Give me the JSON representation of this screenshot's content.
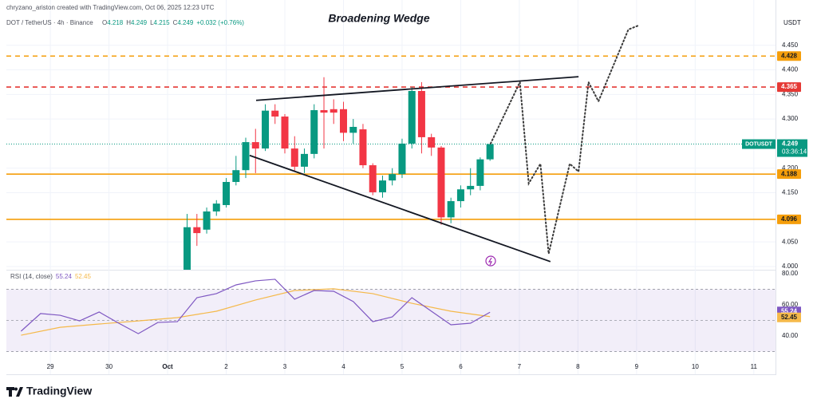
{
  "header": {
    "credit": "chryzano_ariston created with TradingView.com, Oct 06, 2025 12:23 UTC",
    "symbol": "DOT / TetherUS · 4h · Binance",
    "legend": [
      {
        "label": "O",
        "value": "4.218"
      },
      {
        "label": "H",
        "value": "4.249"
      },
      {
        "label": "L",
        "value": "4.215"
      },
      {
        "label": "C",
        "value": "4.249"
      }
    ],
    "change": "+0.032 (+0.76%)",
    "currency": "USDT"
  },
  "footer": {
    "brand": "TradingView"
  },
  "chart_data": [
    {
      "type": "candlestick",
      "title": "Broadening Wedge",
      "x": [
        2.333,
        2.5,
        2.667,
        2.833,
        3,
        3.167,
        3.333,
        3.5,
        3.667,
        3.833,
        4,
        4.167,
        4.333,
        4.5,
        4.667,
        4.833,
        5,
        5.167,
        5.333,
        5.5,
        5.667,
        5.833,
        6,
        6.167,
        6.333,
        6.5,
        6.667,
        6.833,
        7,
        7.167,
        7.333,
        7.5
      ],
      "open": [
        3.99,
        4.08,
        4.075,
        4.112,
        4.125,
        4.172,
        4.196,
        4.253,
        4.24,
        4.317,
        4.305,
        4.24,
        4.203,
        4.229,
        4.318,
        4.32,
        4.32,
        4.272,
        4.279,
        4.206,
        4.151,
        4.175,
        4.188,
        4.25,
        4.357,
        4.263,
        4.242,
        4.1,
        4.133,
        4.157,
        4.164,
        4.218
      ],
      "high": [
        4.107,
        4.107,
        4.12,
        4.135,
        4.18,
        4.225,
        4.262,
        4.28,
        4.33,
        4.33,
        4.31,
        4.265,
        4.24,
        4.33,
        4.385,
        4.34,
        4.335,
        4.3,
        4.29,
        4.21,
        4.185,
        4.2,
        4.26,
        4.365,
        4.375,
        4.27,
        4.245,
        4.14,
        4.165,
        4.2,
        4.222,
        4.249
      ],
      "low": [
        3.98,
        4.042,
        4.067,
        4.103,
        4.12,
        4.165,
        4.18,
        4.19,
        4.235,
        4.29,
        4.23,
        4.195,
        4.19,
        4.22,
        4.24,
        4.29,
        4.255,
        4.25,
        4.2,
        4.145,
        4.14,
        4.165,
        4.18,
        4.24,
        4.23,
        4.225,
        4.085,
        4.088,
        4.12,
        4.145,
        4.155,
        4.215
      ],
      "close": [
        4.08,
        4.068,
        4.112,
        4.128,
        4.172,
        4.196,
        4.253,
        4.24,
        4.317,
        4.305,
        4.24,
        4.203,
        4.229,
        4.318,
        4.313,
        4.313,
        4.272,
        4.284,
        4.206,
        4.151,
        4.175,
        4.188,
        4.25,
        4.357,
        4.263,
        4.242,
        4.1,
        4.133,
        4.157,
        4.164,
        4.218,
        4.249
      ],
      "up_color": "#089981",
      "down_color": "#f23645",
      "xlim": [
        -0.75,
        12.37
      ],
      "ylim": [
        3.9935,
        4.542
      ],
      "xticks": [
        {
          "value": 0,
          "label": "29"
        },
        {
          "value": 1,
          "label": "30"
        },
        {
          "value": 2,
          "label": "Oct"
        },
        {
          "value": 3,
          "label": "2"
        },
        {
          "value": 4,
          "label": "3"
        },
        {
          "value": 5,
          "label": "4"
        },
        {
          "value": 6,
          "label": "5"
        },
        {
          "value": 7,
          "label": "6"
        },
        {
          "value": 8,
          "label": "7"
        },
        {
          "value": 9,
          "label": "8"
        },
        {
          "value": 10,
          "label": "9"
        },
        {
          "value": 11,
          "label": "10"
        },
        {
          "value": 12,
          "label": "11"
        }
      ],
      "yticks": [
        {
          "value": 4.0,
          "label": "4.000"
        },
        {
          "value": 4.05,
          "label": "4.050"
        },
        {
          "value": 4.15,
          "label": "4.150"
        },
        {
          "value": 4.2,
          "label": "4.200"
        },
        {
          "value": 4.3,
          "label": "4.300"
        },
        {
          "value": 4.35,
          "label": "4.350"
        },
        {
          "value": 4.4,
          "label": "4.400"
        },
        {
          "value": 4.45,
          "label": "4.450"
        }
      ],
      "grid": true,
      "levels": [
        {
          "value": 4.428,
          "color": "#f59e0b",
          "dashed": true
        },
        {
          "value": 4.365,
          "color": "#e53935",
          "dashed": true
        },
        {
          "value": 4.188,
          "color": "#f59e0b",
          "dashed": false
        },
        {
          "value": 4.096,
          "color": "#f59e0b",
          "dashed": false
        }
      ],
      "last_price": {
        "label": "DOTUSDT",
        "value": 4.249,
        "countdown": "03:36:14",
        "color": "#089981"
      },
      "wedge_lines": [
        {
          "x": [
            3.51,
            9.01
          ],
          "y": [
            4.338,
            4.386
          ]
        },
        {
          "x": [
            3.4,
            8.53
          ],
          "y": [
            4.226,
            4.01
          ]
        }
      ],
      "projection": {
        "x": [
          7.51,
          8.01,
          8.16,
          8.36,
          8.5,
          8.86,
          9.01,
          9.18,
          9.35,
          9.86,
          10.03
        ],
        "y": [
          4.25,
          4.375,
          4.169,
          4.209,
          4.026,
          4.209,
          4.193,
          4.375,
          4.336,
          4.482,
          4.49
        ]
      }
    },
    {
      "type": "line",
      "title": "RSI (14, close)",
      "series": [
        {
          "name": "55.24",
          "color": "#7e57c2",
          "x": [
            -0.5,
            -0.167,
            0.167,
            0.5,
            0.833,
            1.167,
            1.5,
            1.833,
            2.167,
            2.5,
            2.833,
            3.167,
            3.5,
            3.833,
            4.167,
            4.5,
            4.833,
            5.167,
            5.5,
            5.833,
            6.167,
            6.5,
            6.833,
            7.167,
            7.5
          ],
          "values": [
            43.1,
            54.4,
            53.3,
            49.7,
            55.4,
            48.2,
            41.5,
            48.7,
            49.2,
            64.6,
            67.2,
            72.8,
            75.4,
            76.4,
            63.6,
            69.2,
            68.7,
            62.1,
            49.2,
            52.3,
            64.6,
            55.9,
            47.2,
            48.2,
            55.24
          ]
        },
        {
          "name": "52.45",
          "color": "#f5b94a",
          "x": [
            -0.5,
            0.167,
            0.833,
            1.5,
            2.167,
            2.833,
            3.5,
            4.167,
            4.833,
            5.5,
            6.167,
            6.833,
            7.5
          ],
          "values": [
            40.5,
            45.6,
            47.7,
            49.7,
            51.8,
            55.9,
            63.1,
            69.2,
            70.3,
            67.2,
            61.0,
            55.9,
            52.45
          ]
        }
      ],
      "ylim": [
        26.2,
        81.5
      ],
      "yticks": [
        {
          "value": 80,
          "label": "80.00"
        },
        {
          "value": 60,
          "label": "60.00"
        },
        {
          "value": 40,
          "label": "40.00"
        }
      ],
      "levels": [
        70,
        50,
        30
      ],
      "band_color": "#7e57c2"
    }
  ]
}
